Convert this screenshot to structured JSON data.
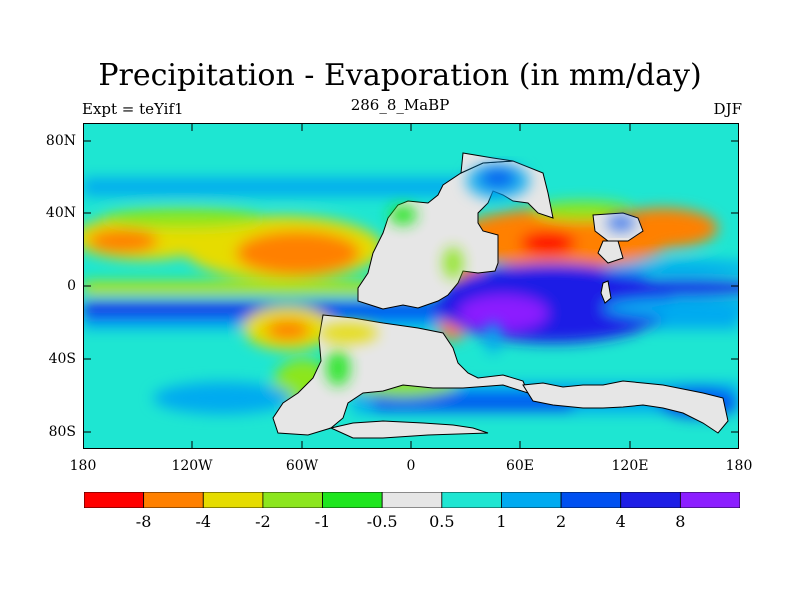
{
  "header": {
    "title": "Precipitation - Evaporation (in mm/day)",
    "experiment": "Expt = teYif1",
    "subtitle": "286_8_MaBP",
    "season": "DJF"
  },
  "axes": {
    "lat_ticks": [
      "80N",
      "40N",
      "0",
      "40S",
      "80S"
    ],
    "lon_ticks": [
      "180",
      "120W",
      "60W",
      "0",
      "60E",
      "120E",
      "180"
    ]
  },
  "colorbar": {
    "colors": [
      "#ff0000",
      "#ff8000",
      "#e6dc00",
      "#8ce61e",
      "#1ee61e",
      "#e6e6e6",
      "#1ee6d2",
      "#00aaf0",
      "#0050f0",
      "#1e1ee6",
      "#8c1eff"
    ],
    "labels": [
      "-8",
      "-4",
      "-2",
      "-1",
      "-0.5",
      "0.5",
      "1",
      "2",
      "4",
      "8"
    ]
  }
}
